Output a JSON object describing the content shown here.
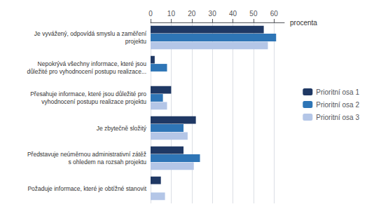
{
  "chart_data": {
    "type": "bar",
    "orientation": "horizontal",
    "xlabel": "procenta",
    "categories": [
      "Je vyvážený, odpovídá smyslu a zaměření\nprojektu",
      "Nepokrývá všechny informace, které jsou\ndůležité pro vyhodnocení postupu realizace...",
      "Přesahuje informace, které jsou důležité pro\nvyhodnocení postupu realizace projektu",
      "Je zbytečně složitý",
      "Představuje neúměrnou administrativní zátěž\ns ohledem na rozsah projektu",
      "Požaduje informace, které je obtížné stanovit"
    ],
    "series": [
      {
        "name": "Prioritní osa 1",
        "color": "#1F3864",
        "values": [
          55,
          2,
          10,
          22,
          16,
          5
        ]
      },
      {
        "name": "Prioritní osa 2",
        "color": "#2E75B6",
        "values": [
          61,
          8,
          6,
          16,
          24,
          0
        ]
      },
      {
        "name": "Prioritní osa 3",
        "color": "#B4C6E7",
        "values": [
          57,
          0,
          8,
          18,
          21,
          7
        ]
      }
    ],
    "xlim": [
      0,
      65
    ],
    "xticks": [
      0,
      10,
      20,
      30,
      40,
      50,
      60
    ],
    "grid": true,
    "legend": "right"
  }
}
